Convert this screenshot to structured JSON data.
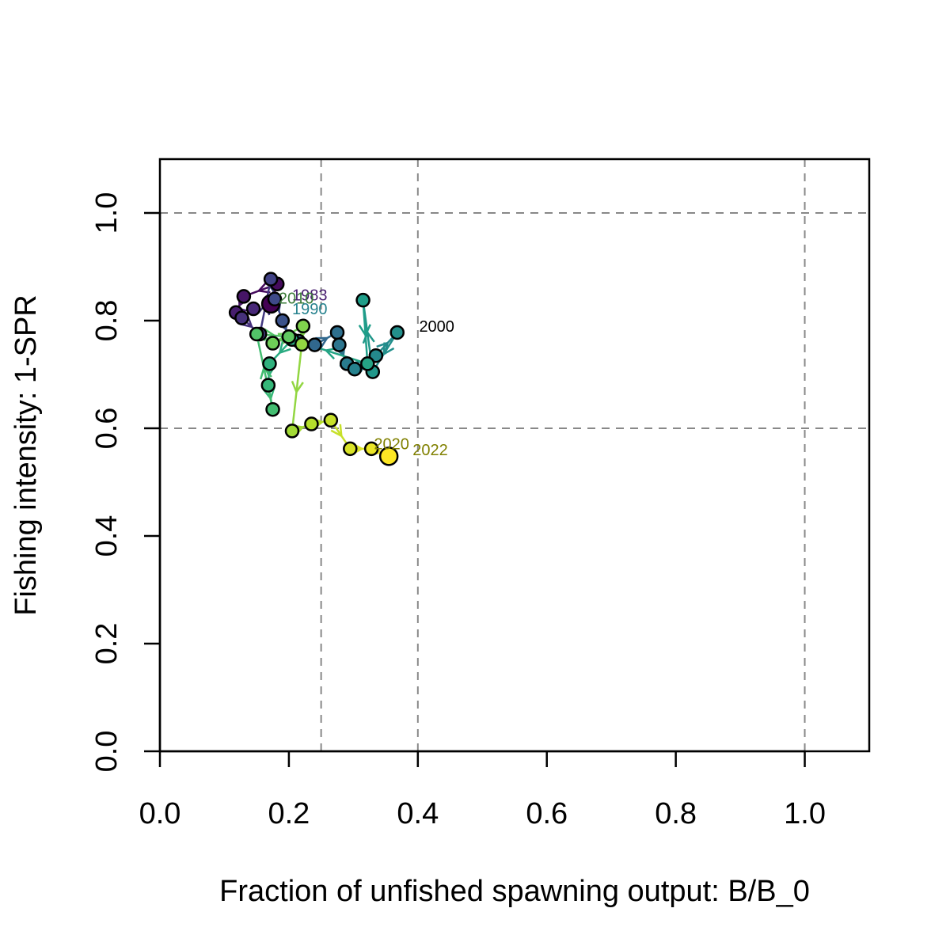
{
  "chart_data": {
    "type": "scatter",
    "xlabel": "Fraction of unfished spawning output: B/B_0",
    "ylabel": "Fishing intensity: 1-SPR",
    "xlim": [
      0.0,
      1.1
    ],
    "ylim": [
      0.0,
      1.1
    ],
    "x_ticks": [
      0.0,
      0.2,
      0.4,
      0.6,
      0.8,
      1.0
    ],
    "y_ticks": [
      0.0,
      0.2,
      0.4,
      0.6,
      0.8,
      1.0
    ],
    "x_tick_labels": [
      "0.0",
      "0.2",
      "0.4",
      "0.6",
      "0.8",
      "1.0"
    ],
    "y_tick_labels": [
      "0.0",
      "0.2",
      "0.4",
      "0.6",
      "0.8",
      "1.0"
    ],
    "reference_lines": {
      "vertical": [
        0.25,
        0.4,
        1.0
      ],
      "horizontal": [
        0.6,
        1.0
      ]
    },
    "grid": false,
    "color_scale": "viridis",
    "series": [
      {
        "x": [
          0.172,
          0.182,
          0.13,
          0.118,
          0.145,
          0.127,
          0.155,
          0.172,
          0.178,
          0.19,
          0.2,
          0.215,
          0.24,
          0.275,
          0.278,
          0.29,
          0.302,
          0.335,
          0.368,
          0.33,
          0.315,
          0.322,
          0.205,
          0.17,
          0.168,
          0.175,
          0.15,
          0.2,
          0.175,
          0.222,
          0.22,
          0.205,
          0.235,
          0.265,
          0.295,
          0.328,
          0.355
        ],
        "y": [
          0.831,
          0.868,
          0.845,
          0.815,
          0.822,
          0.805,
          0.775,
          0.877,
          0.84,
          0.8,
          0.77,
          0.762,
          0.755,
          0.778,
          0.755,
          0.72,
          0.71,
          0.735,
          0.778,
          0.705,
          0.838,
          0.72,
          0.765,
          0.72,
          0.68,
          0.635,
          0.775,
          0.77,
          0.758,
          0.79,
          0.756,
          0.595,
          0.608,
          0.615,
          0.562,
          0.562,
          0.548
        ]
      }
    ],
    "year_labels": [
      {
        "text": "1983",
        "x": 0.205,
        "y": 0.848,
        "color": "#481f70"
      },
      {
        "text": "2010",
        "x": 0.184,
        "y": 0.842,
        "color": "#3b7c39"
      },
      {
        "text": "1990",
        "x": 0.205,
        "y": 0.822,
        "color": "#26828e"
      },
      {
        "text": "2000",
        "x": 0.402,
        "y": 0.79,
        "color": "#000000"
      },
      {
        "text": "2020",
        "x": 0.332,
        "y": 0.571,
        "color": "#808000"
      },
      {
        "text": "2022",
        "x": 0.392,
        "y": 0.56,
        "color": "#808000"
      }
    ]
  }
}
